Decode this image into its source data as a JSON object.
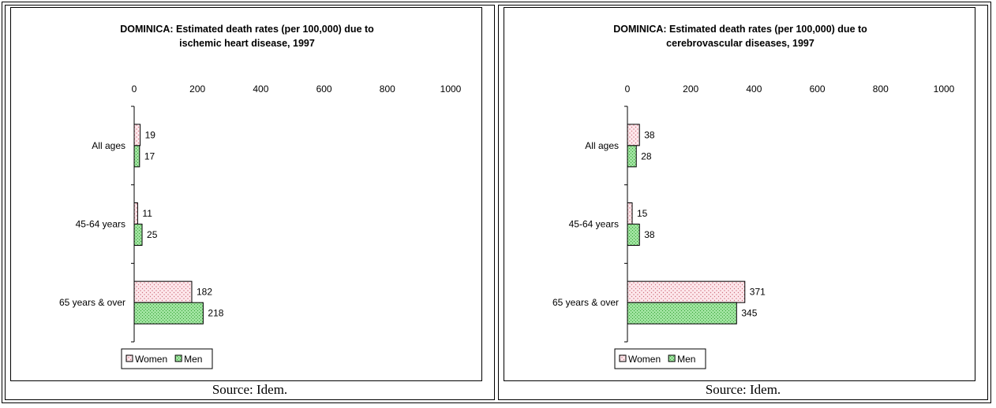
{
  "source_label": "Source: Idem.",
  "colors": {
    "women_fill": "#fde8ec",
    "women_dot": "#d0707e",
    "men_fill": "#9fe39f",
    "men_pattern": "#33a033"
  },
  "chart_data": [
    {
      "type": "bar",
      "orientation": "horizontal",
      "title": [
        "DOMINICA: Estimated death rates (per 100,000) due to",
        "ischemic heart disease, 1997"
      ],
      "categories": [
        "All ages",
        "45-64 years",
        "65 years & over"
      ],
      "series": [
        {
          "name": "Women",
          "values": [
            19,
            11,
            182
          ]
        },
        {
          "name": "Men",
          "values": [
            17,
            25,
            218
          ]
        }
      ],
      "xlim": [
        0,
        1000
      ],
      "xticks": [
        "0",
        "200",
        "400",
        "600",
        "800",
        "1000"
      ],
      "legend": "bottom",
      "grid": false
    },
    {
      "type": "bar",
      "orientation": "horizontal",
      "title": [
        "DOMINICA: Estimated death rates (per 100,000) due to",
        "cerebrovascular diseases, 1997"
      ],
      "categories": [
        "All ages",
        "45-64 years",
        "65 years & over"
      ],
      "series": [
        {
          "name": "Women",
          "values": [
            38,
            15,
            371
          ]
        },
        {
          "name": "Men",
          "values": [
            28,
            38,
            345
          ]
        }
      ],
      "xlim": [
        0,
        1000
      ],
      "xticks": [
        "0",
        "200",
        "400",
        "600",
        "800",
        "1000"
      ],
      "legend": "bottom",
      "grid": false
    }
  ]
}
